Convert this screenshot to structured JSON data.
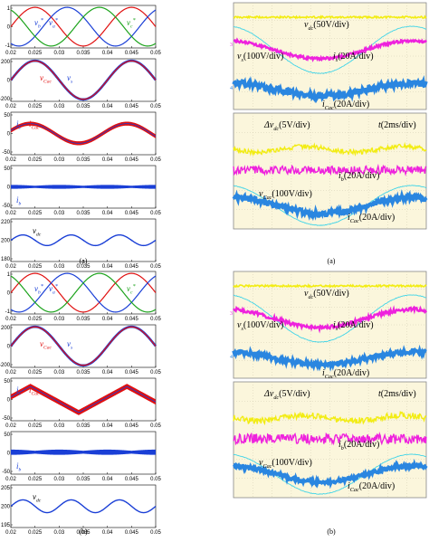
{
  "figure_a": {
    "sim_caption": "(a)",
    "scope_caption": "(a)",
    "sim_panels": [
      {
        "ylim": [
          -1.1,
          1.1
        ],
        "yticks": [
          "1",
          "0",
          "-1"
        ],
        "labels": [
          {
            "text": "v",
            "sub": "b",
            "sup": "*",
            "color": "#1a3fd6"
          },
          {
            "text": "v",
            "sub": "a",
            "sup": "*",
            "color": "#1a3fd6"
          },
          {
            "text": "v",
            "sub": "c",
            "sup": "*",
            "color": "#1ca31c"
          }
        ]
      },
      {
        "ylim": [
          -220,
          220
        ],
        "yticks": [
          "200",
          "0",
          "-200"
        ],
        "labels": [
          {
            "text": "v",
            "sub": "Cac",
            "color": "#e01010"
          },
          {
            "text": "v",
            "sub": "s",
            "color": "#1a3fd6"
          }
        ]
      },
      {
        "ylim": [
          -65,
          65
        ],
        "yticks": [
          "50",
          "0",
          "-50"
        ],
        "labels": [
          {
            "text": "i",
            "sub": "s",
            "color": "#1a3fd6"
          },
          {
            "text": "i",
            "sub": "Cac",
            "color": "#e01010"
          }
        ]
      },
      {
        "ylim": [
          -65,
          65
        ],
        "yticks": [
          "50",
          "0",
          "-50"
        ],
        "labels": [
          {
            "text": "i",
            "sub": "b",
            "color": "#1a3fd6"
          }
        ]
      },
      {
        "ylim": [
          180,
          220
        ],
        "yticks": [
          "220",
          "200",
          "180"
        ],
        "labels": [
          {
            "text": "v",
            "sub": "dc",
            "color": "#000"
          }
        ]
      }
    ],
    "xticks": [
      "0.02",
      "0.025",
      "0.03",
      "0.035",
      "0.04",
      "0.045",
      "0.05"
    ],
    "scope_top_labels": [
      {
        "text": "v",
        "sub": "dc",
        "rest": "(50V/div)"
      },
      {
        "text": "v",
        "sub": "s",
        "rest": "(100V/div)"
      },
      {
        "text": "i",
        "sub": "s",
        "rest": "(20A/div)"
      },
      {
        "text": "i",
        "sub": "Cac",
        "rest": "(20A/div)"
      }
    ],
    "scope_bottom_labels": [
      {
        "text": "Δv",
        "sub": "dc",
        "rest": "(5V/div)"
      },
      {
        "text": "t",
        "sub": "",
        "rest": "(2ms/div)"
      },
      {
        "text": "i",
        "sub": "b",
        "rest": "(20A/div)"
      },
      {
        "text": "v",
        "sub": "Cac",
        "rest": "(100V/div)"
      },
      {
        "text": "i",
        "sub": "Cac",
        "rest": "(20A/div)"
      }
    ]
  },
  "figure_b": {
    "sim_caption": "(b)",
    "scope_caption": "(b)",
    "sim_panels": [
      {
        "ylim": [
          -1.1,
          1.1
        ],
        "yticks": [
          "1",
          "0",
          "-1"
        ],
        "labels": [
          {
            "text": "v",
            "sub": "b",
            "sup": "*",
            "color": "#1a3fd6"
          },
          {
            "text": "v",
            "sub": "a",
            "sup": "*",
            "color": "#1a3fd6"
          },
          {
            "text": "v",
            "sub": "c",
            "sup": "*",
            "color": "#1ca31c"
          }
        ]
      },
      {
        "ylim": [
          -220,
          220
        ],
        "yticks": [
          "200",
          "0",
          "-200"
        ],
        "labels": [
          {
            "text": "v",
            "sub": "Cac",
            "color": "#e01010"
          },
          {
            "text": "v",
            "sub": "s",
            "color": "#1a3fd6"
          }
        ]
      },
      {
        "ylim": [
          -65,
          65
        ],
        "yticks": [
          "50",
          "0",
          "-50"
        ],
        "labels": [
          {
            "text": "i",
            "sub": "s",
            "color": "#1a3fd6"
          },
          {
            "text": "i",
            "sub": "Cac",
            "color": "#e01010"
          }
        ]
      },
      {
        "ylim": [
          -65,
          65
        ],
        "yticks": [
          "50",
          "0",
          "-50"
        ],
        "labels": [
          {
            "text": "i",
            "sub": "b",
            "color": "#1a3fd6"
          }
        ]
      },
      {
        "ylim": [
          195,
          205
        ],
        "yticks": [
          "205",
          "200",
          "195"
        ],
        "labels": [
          {
            "text": "v",
            "sub": "dc",
            "color": "#000"
          }
        ]
      }
    ],
    "xticks": [
      "0.02",
      "0.025",
      "0.03",
      "0.035",
      "0.04",
      "0.045",
      "0.05"
    ],
    "scope_top_labels": [
      {
        "text": "v",
        "sub": "dc",
        "rest": "(50V/div)"
      },
      {
        "text": "v",
        "sub": "s",
        "rest": "(100V/div)"
      },
      {
        "text": "i",
        "sub": "s",
        "rest": "(20A/div)"
      },
      {
        "text": "i",
        "sub": "Cac",
        "rest": "(20A/div)"
      }
    ],
    "scope_bottom_labels": [
      {
        "text": "Δv",
        "sub": "dc",
        "rest": "(5V/div)"
      },
      {
        "text": "t",
        "sub": "",
        "rest": "(2ms/div)"
      },
      {
        "text": "i",
        "sub": "b",
        "rest": "(20A/div)"
      },
      {
        "text": "v",
        "sub": "Cac",
        "rest": "(100V/div)"
      },
      {
        "text": "i",
        "sub": "Cac",
        "rest": "(20A/div)"
      }
    ]
  },
  "colors": {
    "sim_red": "#e01010",
    "sim_blue": "#1a3fd6",
    "sim_green": "#1ca31c",
    "scope_bg": "#fbf6dc",
    "scope_yellow": "#f2ec12",
    "scope_cyan": "#3fd4e8",
    "scope_magenta": "#ee22dd",
    "scope_blue": "#2a86e0",
    "scope_grid": "#c9c4a8"
  },
  "chart_data": [
    {
      "type": "line",
      "title": "",
      "xlabel": "",
      "ylabel": "",
      "x_range": [
        0.02,
        0.05
      ],
      "xticks": [
        0.02,
        0.025,
        0.03,
        0.035,
        0.04,
        0.045,
        0.05
      ],
      "panels": [
        {
          "series": [
            {
              "name": "v_a*",
              "shape": "sine",
              "amplitude": 1,
              "frequency_hz": 50,
              "phase_deg": 0
            },
            {
              "name": "v_b*",
              "shape": "sine",
              "amplitude": 1,
              "frequency_hz": 50,
              "phase_deg": -120
            },
            {
              "name": "v_c*",
              "shape": "sine",
              "amplitude": 1,
              "frequency_hz": 50,
              "phase_deg": 120
            }
          ],
          "ylim": [
            -1.1,
            1.1
          ]
        },
        {
          "series": [
            {
              "name": "v_Cac",
              "amplitude": 200,
              "frequency_hz": 50
            },
            {
              "name": "v_s",
              "amplitude": 200,
              "frequency_hz": 50
            }
          ],
          "ylim": [
            -220,
            220
          ]
        },
        {
          "series": [
            {
              "name": "i_s",
              "amplitude": 30,
              "frequency_hz": 50
            },
            {
              "name": "i_Cac",
              "amplitude": 30,
              "ripple": 6,
              "frequency_hz": 50
            }
          ],
          "ylim": [
            -65,
            65
          ]
        },
        {
          "series": [
            {
              "name": "i_b",
              "mean": 0,
              "ripple_amplitude": 6,
              "ripple_frequency_hz": 100
            }
          ],
          "ylim": [
            -65,
            65
          ]
        },
        {
          "series": [
            {
              "name": "v_dc",
              "mean": 200,
              "ripple_amplitude": 5,
              "ripple_frequency_hz": 100
            }
          ],
          "ylim": [
            180,
            220
          ]
        }
      ]
    },
    {
      "type": "line",
      "title": "",
      "xlabel": "",
      "ylabel": "",
      "x_range": [
        0.02,
        0.05
      ],
      "xticks": [
        0.02,
        0.025,
        0.03,
        0.035,
        0.04,
        0.045,
        0.05
      ],
      "panels": [
        {
          "series": [
            {
              "name": "v_a*",
              "amplitude": 1
            },
            {
              "name": "v_b*",
              "amplitude": 1
            },
            {
              "name": "v_c*",
              "amplitude": 1
            }
          ],
          "ylim": [
            -1.1,
            1.1
          ]
        },
        {
          "series": [
            {
              "name": "v_Cac",
              "amplitude": 200
            },
            {
              "name": "v_s",
              "amplitude": 200
            }
          ],
          "ylim": [
            -220,
            220
          ]
        },
        {
          "series": [
            {
              "name": "i_s",
              "amplitude": 40,
              "shape": "triangular"
            },
            {
              "name": "i_Cac",
              "amplitude": 40,
              "ripple": 8
            }
          ],
          "ylim": [
            -65,
            65
          ]
        },
        {
          "series": [
            {
              "name": "i_b",
              "mean": 2,
              "ripple_amplitude": 8
            }
          ],
          "ylim": [
            -65,
            65
          ]
        },
        {
          "series": [
            {
              "name": "v_dc",
              "mean": 200,
              "ripple_amplitude": 1.5,
              "ripple_frequency_hz": 100
            }
          ],
          "ylim": [
            195,
            205
          ]
        }
      ]
    }
  ]
}
